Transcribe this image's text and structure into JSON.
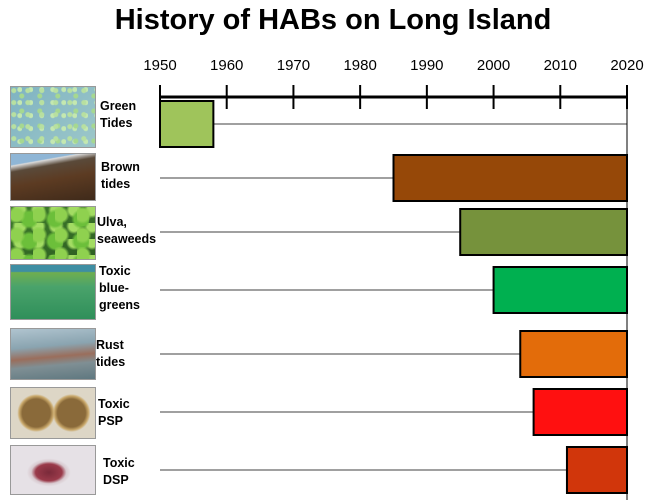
{
  "title": "History of HABs on Long Island",
  "chart_data": {
    "type": "bar",
    "orientation": "horizontal-range",
    "title": "History of HABs on Long Island",
    "xlabel": "",
    "ylabel": "",
    "xlim": [
      1950,
      2020
    ],
    "xticks": [
      1950,
      1960,
      1970,
      1980,
      1990,
      2000,
      2010,
      2020
    ],
    "grid": false,
    "series": [
      {
        "label": "Green\nTides",
        "start": 1950,
        "end": 1958,
        "color": "#9fc45b"
      },
      {
        "label": "Brown\ntides",
        "start": 1985,
        "end": 2020,
        "color": "#964808"
      },
      {
        "label": "Ulva,\nseaweeds",
        "start": 1995,
        "end": 2020,
        "color": "#76923c"
      },
      {
        "label": "Toxic\nblue-\ngreens",
        "start": 2000,
        "end": 2020,
        "color": "#00b050"
      },
      {
        "label": "Rust\ntides",
        "start": 2004,
        "end": 2020,
        "color": "#e36c0a"
      },
      {
        "label": "Toxic\nPSP",
        "start": 2006,
        "end": 2020,
        "color": "#ff1010"
      },
      {
        "label": "Toxic\nDSP",
        "start": 2011,
        "end": 2020,
        "color": "#d1360b"
      }
    ]
  },
  "thumbnails": [
    {
      "icon": "green-algae-photo"
    },
    {
      "icon": "brown-tide-photo"
    },
    {
      "icon": "seaweed-photo"
    },
    {
      "icon": "blue-green-algae-photo"
    },
    {
      "icon": "rust-tide-photo"
    },
    {
      "icon": "psp-cells-photo"
    },
    {
      "icon": "dsp-cell-photo"
    }
  ]
}
